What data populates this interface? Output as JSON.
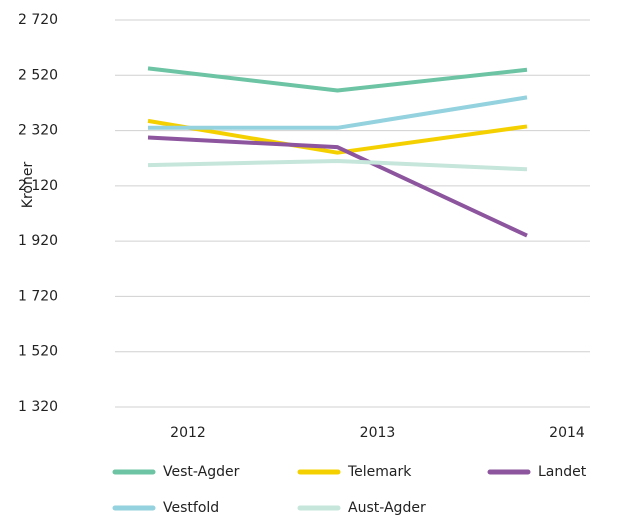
{
  "chart_data": {
    "type": "line",
    "y_label": "Kroner",
    "categories": [
      "2012",
      "2013",
      "2014"
    ],
    "series": [
      {
        "name": "Vest-Agder",
        "color": "#6cc4a4",
        "values": [
          2545,
          2465,
          2540
        ]
      },
      {
        "name": "Telemark",
        "color": "#f5d000",
        "values": [
          2355,
          2240,
          2335
        ]
      },
      {
        "name": "Landet",
        "color": "#8c559e",
        "values": [
          2295,
          2260,
          1940
        ]
      },
      {
        "name": "Vestfold",
        "color": "#93d2de",
        "values": [
          2330,
          2330,
          2440
        ]
      },
      {
        "name": "Aust-Agder",
        "color": "#c6e6db",
        "values": [
          2195,
          2210,
          2180
        ]
      }
    ],
    "ylim": [
      1320,
      2720
    ],
    "yticks": [
      {
        "value": 1320,
        "label": "1 320"
      },
      {
        "value": 1520,
        "label": "1 520"
      },
      {
        "value": 1720,
        "label": "1 720"
      },
      {
        "value": 1920,
        "label": "1 920"
      },
      {
        "value": 2120,
        "label": "2 120"
      },
      {
        "value": 2320,
        "label": "2 320"
      },
      {
        "value": 2520,
        "label": "2 520"
      },
      {
        "value": 2720,
        "label": "2 720"
      }
    ],
    "grid": true
  }
}
